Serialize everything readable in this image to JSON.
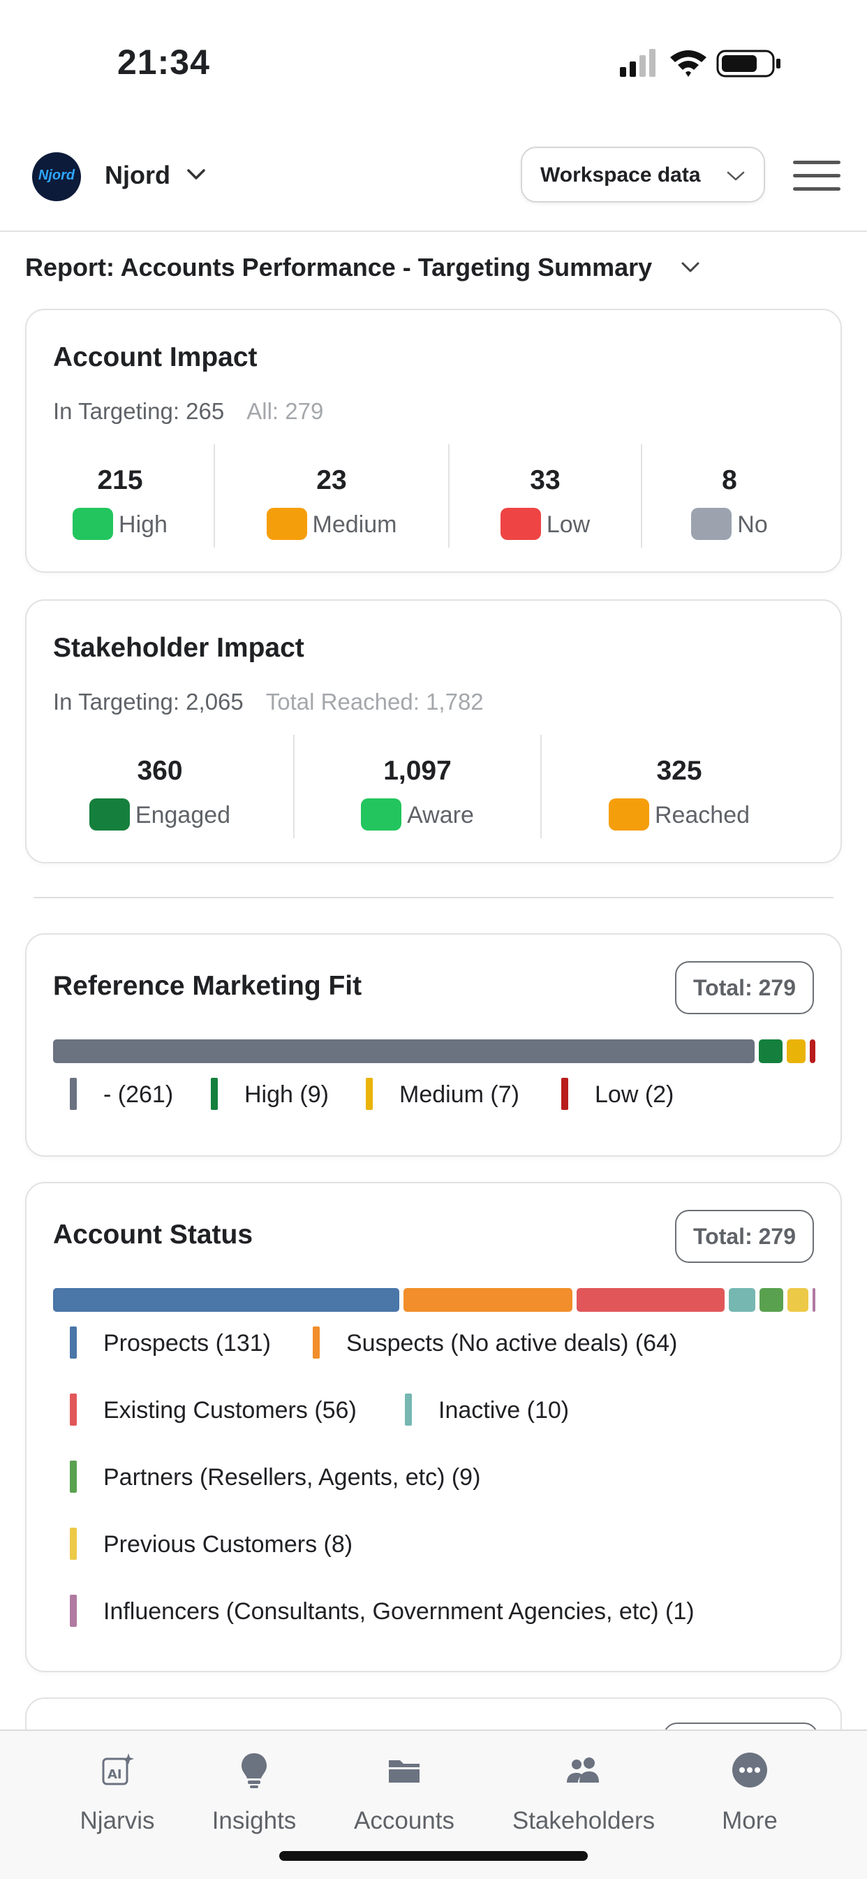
{
  "status_bar": {
    "time": "21:34"
  },
  "header": {
    "brand": "Njord",
    "logo_text": "Njord",
    "workspace_label": "Workspace data"
  },
  "report": {
    "title": "Report: Accounts Performance - Targeting Summary"
  },
  "account_impact": {
    "title": "Account Impact",
    "in_targeting": "In Targeting: 265",
    "all": "All: 279",
    "stats": [
      {
        "value": "215",
        "label": "High",
        "color": "#22c55e"
      },
      {
        "value": "23",
        "label": "Medium",
        "color": "#f59e0b"
      },
      {
        "value": "33",
        "label": "Low",
        "color": "#ef4444"
      },
      {
        "value": "8",
        "label": "No",
        "color": "#9ca3af"
      }
    ]
  },
  "stakeholder_impact": {
    "title": "Stakeholder Impact",
    "in_targeting": "In Targeting: 2,065",
    "total_reached": "Total Reached: 1,782",
    "stats": [
      {
        "value": "360",
        "label": "Engaged",
        "color": "#15803d"
      },
      {
        "value": "1,097",
        "label": "Aware",
        "color": "#22c55e"
      },
      {
        "value": "325",
        "label": "Reached",
        "color": "#f59e0b"
      }
    ]
  },
  "reference_marketing_fit": {
    "title": "Reference Marketing Fit",
    "total": "Total: 279",
    "segments": [
      {
        "label": "- (261)",
        "count": 261,
        "color": "#6b7280"
      },
      {
        "label": "High (9)",
        "count": 9,
        "color": "#15803d"
      },
      {
        "label": "Medium (7)",
        "count": 7,
        "color": "#eab308"
      },
      {
        "label": "Low (2)",
        "count": 2,
        "color": "#b91c1c"
      }
    ]
  },
  "account_status": {
    "title": "Account Status",
    "total": "Total: 279",
    "segments": [
      {
        "label": "Prospects (131)",
        "count": 131,
        "color": "#4a76a8"
      },
      {
        "label": "Suspects (No active deals) (64)",
        "count": 64,
        "color": "#f28e2b"
      },
      {
        "label": "Existing Customers (56)",
        "count": 56,
        "color": "#e15759"
      },
      {
        "label": "Inactive (10)",
        "count": 10,
        "color": "#76b7b2"
      },
      {
        "label": "Partners (Resellers, Agents, etc) (9)",
        "count": 9,
        "color": "#59a14f"
      },
      {
        "label": "Previous Customers (8)",
        "count": 8,
        "color": "#edc948"
      },
      {
        "label": "Influencers (Consultants, Government Agencies, etc) (1)",
        "count": 1,
        "color": "#b07aa1"
      }
    ]
  },
  "tabs": [
    {
      "label": "Njarvis",
      "icon": "ai-sparkle-icon"
    },
    {
      "label": "Insights",
      "icon": "lightbulb-icon"
    },
    {
      "label": "Accounts",
      "icon": "folder-icon"
    },
    {
      "label": "Stakeholders",
      "icon": "people-icon"
    },
    {
      "label": "More",
      "icon": "more-dots-icon"
    }
  ]
}
